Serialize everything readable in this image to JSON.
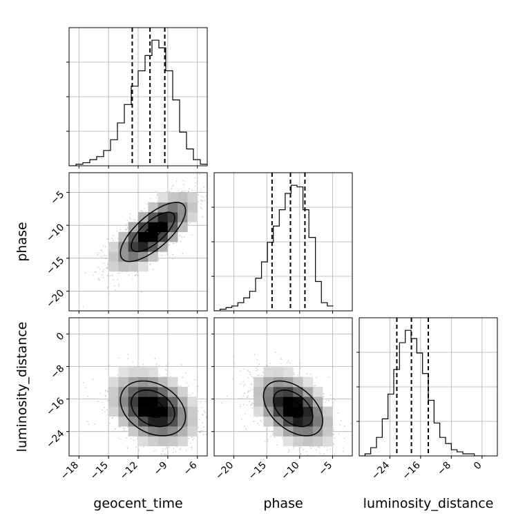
{
  "chart_data": {
    "type": "corner",
    "parameters": [
      "geocent_time",
      "phase",
      "luminosity_distance"
    ],
    "quantile_lines": "dashed lines at 16th / 50th / 84th percentiles",
    "grid": true,
    "colors": {
      "line": "#000000",
      "grid": "#b0b0b0",
      "scatter": "#9a9a9a"
    },
    "panels": [
      {
        "id": "hist-geocent_time",
        "kind": "histogram",
        "x": "geocent_time",
        "xlim": [
          -19,
          -5
        ],
        "xticks": [
          -18,
          -15,
          -12,
          -9,
          -6
        ],
        "quantiles": [
          -12.6,
          -10.8,
          -9.3
        ],
        "bin_edges": [
          -19.0,
          -18.3,
          -17.6,
          -16.9,
          -16.2,
          -15.5,
          -14.8,
          -14.1,
          -13.4,
          -12.7,
          -12.0,
          -11.3,
          -10.6,
          -9.9,
          -9.2,
          -8.5,
          -7.8,
          -7.1,
          -6.4,
          -5.7,
          -5.0
        ],
        "counts": [
          0,
          1,
          2,
          4,
          6,
          10,
          17,
          28,
          40,
          52,
          62,
          72,
          82,
          77,
          62,
          43,
          22,
          11,
          4,
          1
        ]
      },
      {
        "id": "hist-phase",
        "kind": "histogram",
        "x": "phase",
        "xlim": [
          -23,
          -2
        ],
        "xticks": [
          -20,
          -15,
          -10,
          -5
        ],
        "quantiles": [
          -14.2,
          -11.4,
          -9.2
        ],
        "bin_edges": [
          -23.0,
          -22.1,
          -21.2,
          -20.3,
          -19.4,
          -18.5,
          -17.6,
          -16.7,
          -15.8,
          -14.9,
          -14.0,
          -13.1,
          -12.2,
          -11.3,
          -10.4,
          -9.5,
          -8.6,
          -7.6,
          -6.7,
          -5.8,
          -4.9
        ],
        "counts": [
          0,
          1,
          2,
          3,
          5,
          8,
          12,
          20,
          30,
          42,
          52,
          62,
          72,
          77,
          76,
          62,
          45,
          18,
          5,
          3
        ]
      },
      {
        "id": "hist-luminosity_distance",
        "kind": "histogram",
        "x": "luminosity_distance",
        "xlim": [
          -32,
          4
        ],
        "xticks": [
          -24,
          -16,
          -8,
          0
        ],
        "quantiles": [
          -22.2,
          -18.4,
          -14.0
        ],
        "bin_edges": [
          -32.0,
          -30.5,
          -29.0,
          -27.5,
          -26.0,
          -24.5,
          -23.0,
          -21.5,
          -20.0,
          -18.5,
          -17.0,
          -15.5,
          -14.0,
          -12.5,
          -11.0,
          -9.5,
          -8.0,
          -6.5,
          -5.0,
          -3.5,
          -2.0,
          0.0,
          1.0
        ],
        "counts": [
          0,
          1,
          4,
          9,
          18,
          30,
          42,
          55,
          61,
          57,
          50,
          40,
          27,
          16,
          9,
          6,
          3,
          2,
          1,
          1,
          0,
          0
        ]
      },
      {
        "id": "joint-geocent_time-phase",
        "kind": "2d-density",
        "x": "geocent_time",
        "y": "phase",
        "xlim": [
          -19,
          -5
        ],
        "ylim": [
          -23,
          -2
        ],
        "yticks": [
          -20,
          -15,
          -10,
          -5
        ],
        "center": [
          -10.5,
          -11.0
        ],
        "sx": 2.2,
        "sy": 3.0,
        "rho": 0.72,
        "contour_levels": [
          0.5,
          1.0,
          1.5
        ]
      },
      {
        "id": "joint-geocent_time-luminosity_distance",
        "kind": "2d-density",
        "x": "geocent_time",
        "y": "luminosity_distance",
        "xlim": [
          -19,
          -5
        ],
        "ylim": [
          -30,
          4
        ],
        "yticks": [
          -24,
          -16,
          -8,
          0
        ],
        "center": [
          -10.5,
          -18.3
        ],
        "sx": 2.2,
        "sy": 4.5,
        "rho": -0.3,
        "contour_levels": [
          0.5,
          1.0,
          1.5
        ]
      },
      {
        "id": "joint-phase-luminosity_distance",
        "kind": "2d-density",
        "x": "phase",
        "y": "luminosity_distance",
        "xlim": [
          -23,
          -2
        ],
        "ylim": [
          -30,
          4
        ],
        "center": [
          -11.0,
          -18.3
        ],
        "sx": 3.0,
        "sy": 4.5,
        "rho": -0.45,
        "contour_levels": [
          0.5,
          1.0,
          1.5
        ]
      }
    ]
  }
}
